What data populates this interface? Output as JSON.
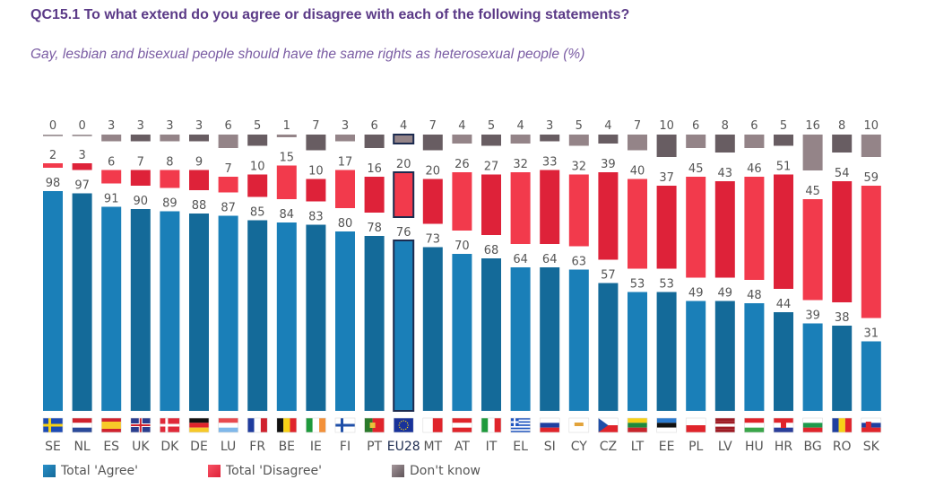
{
  "title": "QC15.1 To what extend do you agree or disagree with each of the following statements?",
  "subtitle": "Gay, lesbian and bisexual people should have the same rights as heterosexual people (%)",
  "colors": {
    "agree_light": "#1a7fb8",
    "agree_dark": "#146a99",
    "disagree_light": "#f23a4c",
    "disagree_dark": "#de2239",
    "dontknow_light": "#948488",
    "dontknow_dark": "#685d62",
    "highlight_outline": "#1c2b4f",
    "label_text": "#555555",
    "title": "#5b3a87",
    "subtitle": "#7a5ca3"
  },
  "chart_data": {
    "type": "bar",
    "stacked_layout": "separated-bands",
    "title": "QC15.1 To what extend do you agree or disagree with each of the following statements?",
    "subtitle": "Gay, lesbian and bisexual people should have the same rights as heterosexual people (%)",
    "xlabel": "",
    "ylabel": "",
    "ylim": [
      0,
      100
    ],
    "grid": false,
    "legend_position": "bottom-left",
    "highlight_category": "EU28",
    "categories": [
      "SE",
      "NL",
      "ES",
      "UK",
      "DK",
      "DE",
      "LU",
      "FR",
      "BE",
      "IE",
      "FI",
      "PT",
      "EU28",
      "MT",
      "AT",
      "IT",
      "EL",
      "SI",
      "CY",
      "CZ",
      "LT",
      "EE",
      "PL",
      "LV",
      "HU",
      "HR",
      "BG",
      "RO",
      "SK"
    ],
    "series": [
      {
        "name": "Total 'Agree'",
        "values": [
          98,
          97,
          91,
          90,
          89,
          88,
          87,
          85,
          84,
          83,
          80,
          78,
          76,
          73,
          70,
          68,
          64,
          64,
          63,
          57,
          53,
          53,
          49,
          49,
          48,
          44,
          39,
          38,
          31
        ]
      },
      {
        "name": "Total 'Disagree'",
        "values": [
          2,
          3,
          6,
          7,
          8,
          9,
          7,
          10,
          15,
          10,
          17,
          16,
          20,
          20,
          26,
          27,
          32,
          33,
          32,
          39,
          40,
          37,
          45,
          43,
          46,
          51,
          45,
          54,
          59
        ]
      },
      {
        "name": "Don't know",
        "values": [
          0,
          0,
          3,
          3,
          3,
          3,
          6,
          5,
          1,
          7,
          3,
          6,
          4,
          7,
          4,
          5,
          4,
          3,
          5,
          4,
          7,
          10,
          6,
          8,
          6,
          5,
          16,
          8,
          10
        ]
      }
    ]
  },
  "legend": [
    {
      "label": "Total 'Agree'",
      "icon": "blue-square-icon"
    },
    {
      "label": "Total 'Disagree'",
      "icon": "red-square-icon"
    },
    {
      "label": "Don't know",
      "icon": "grey-square-icon"
    }
  ],
  "flags": [
    "sweden-flag",
    "netherlands-flag",
    "spain-flag",
    "uk-flag",
    "denmark-flag",
    "germany-flag",
    "luxembourg-flag",
    "france-flag",
    "belgium-flag",
    "ireland-flag",
    "finland-flag",
    "portugal-flag",
    "eu-flag",
    "malta-flag",
    "austria-flag",
    "italy-flag",
    "greece-flag",
    "slovenia-flag",
    "cyprus-flag",
    "czechia-flag",
    "lithuania-flag",
    "estonia-flag",
    "poland-flag",
    "latvia-flag",
    "hungary-flag",
    "croatia-flag",
    "bulgaria-flag",
    "romania-flag",
    "slovakia-flag"
  ]
}
